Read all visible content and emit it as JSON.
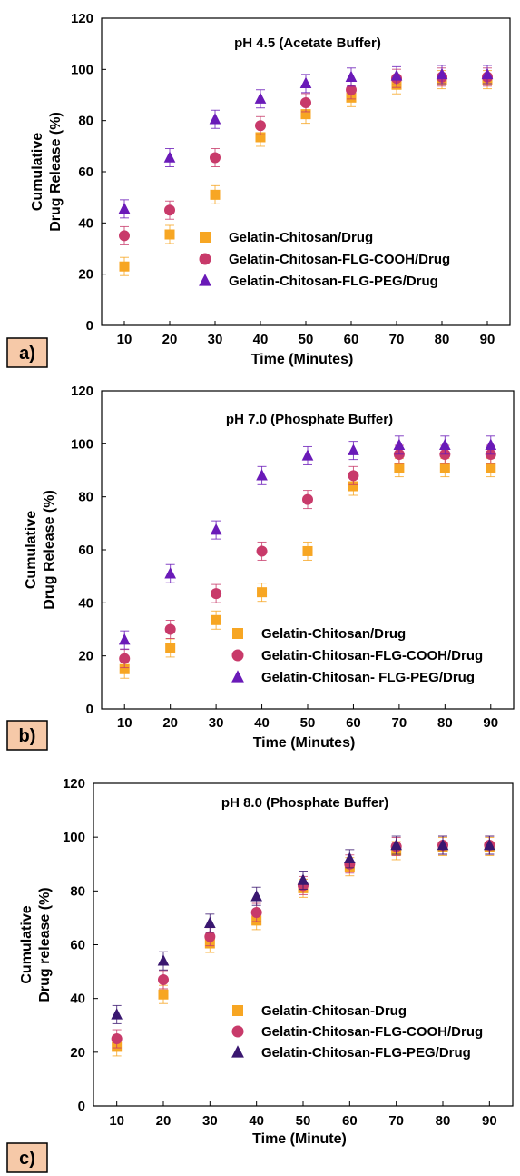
{
  "chart_data": [
    {
      "type": "scatter",
      "panel_label": "a)",
      "title": "pH 4.5 (Acetate Buffer)",
      "xlabel": "Time (Minutes)",
      "ylabel_lines": [
        "Cumulative",
        "Drug Release (%)"
      ],
      "x": [
        10,
        20,
        30,
        40,
        50,
        60,
        70,
        80,
        90
      ],
      "xlim": [
        5,
        95
      ],
      "ylim": [
        0,
        120
      ],
      "yticks": [
        0,
        20,
        40,
        60,
        80,
        100,
        120
      ],
      "grid": false,
      "legend_position": "center-right",
      "series": [
        {
          "name": "Gelatin-Chitosan/Drug",
          "marker": "square",
          "color": "#f7a623",
          "values": [
            23,
            35.5,
            51,
            73.5,
            82.5,
            89,
            94,
            96,
            96
          ]
        },
        {
          "name": "Gelatin-Chitosan-FLG-COOH/Drug",
          "marker": "circle",
          "color": "#c83a6a",
          "values": [
            35,
            45,
            65.5,
            78,
            87,
            92,
            96.5,
            97,
            97
          ]
        },
        {
          "name": "Gelatin-Chitosan-FLG-PEG/Drug",
          "marker": "triangle",
          "color": "#6a1ab8",
          "values": [
            45.5,
            65.5,
            80.5,
            88.5,
            94.5,
            97,
            97.5,
            98,
            98
          ]
        }
      ]
    },
    {
      "type": "scatter",
      "panel_label": "b)",
      "title": "pH 7.0 (Phosphate Buffer)",
      "xlabel": "Time (Minutes)",
      "ylabel_lines": [
        "Cumulative",
        "Drug Release (%)"
      ],
      "x": [
        10,
        20,
        30,
        40,
        50,
        60,
        70,
        80,
        90
      ],
      "xlim": [
        5,
        95
      ],
      "ylim": [
        0,
        120
      ],
      "yticks": [
        0,
        20,
        40,
        60,
        80,
        100,
        120
      ],
      "grid": false,
      "legend_position": "bottom-right",
      "series": [
        {
          "name": "Gelatin-Chitosan/Drug",
          "marker": "square",
          "color": "#f7a623",
          "values": [
            15,
            23,
            33.5,
            44,
            59.5,
            84,
            91,
            91,
            91
          ]
        },
        {
          "name": "Gelatin-Chitosan-FLG-COOH/Drug",
          "marker": "circle",
          "color": "#c83a6a",
          "values": [
            19,
            30,
            43.5,
            59.5,
            79,
            88,
            96,
            96,
            96
          ]
        },
        {
          "name": "Gelatin-Chitosan- FLG-PEG/Drug",
          "marker": "triangle",
          "color": "#6a1ab8",
          "values": [
            26,
            51,
            67.5,
            88,
            95.5,
            97.5,
            99.5,
            99.5,
            99.5
          ]
        }
      ]
    },
    {
      "type": "scatter",
      "panel_label": "c)",
      "title": "pH 8.0 (Phosphate Buffer)",
      "xlabel": "Time (Minute)",
      "ylabel_lines": [
        "Cumulative",
        "Drug release (%)"
      ],
      "x": [
        10,
        20,
        30,
        40,
        50,
        60,
        70,
        80,
        90
      ],
      "xlim": [
        5,
        95
      ],
      "ylim": [
        0,
        120
      ],
      "yticks": [
        0,
        20,
        40,
        60,
        80,
        100,
        120
      ],
      "grid": false,
      "legend_position": "bottom-right",
      "series": [
        {
          "name": "Gelatin-Chitosan-Drug",
          "marker": "square",
          "color": "#f7a623",
          "values": [
            22,
            41.5,
            60.5,
            69,
            81,
            89,
            95,
            96.5,
            96.5
          ]
        },
        {
          "name": "Gelatin-Chitosan-FLG-COOH/Drug",
          "marker": "circle",
          "color": "#c83a6a",
          "values": [
            25,
            47,
            63,
            72,
            82,
            90,
            96.5,
            97,
            97
          ]
        },
        {
          "name": "Gelatin-Chitosan-FLG-PEG/Drug",
          "marker": "triangle",
          "color": "#3a1770",
          "values": [
            34,
            54,
            68,
            78,
            84,
            92,
            97,
            97,
            97
          ]
        }
      ]
    }
  ]
}
